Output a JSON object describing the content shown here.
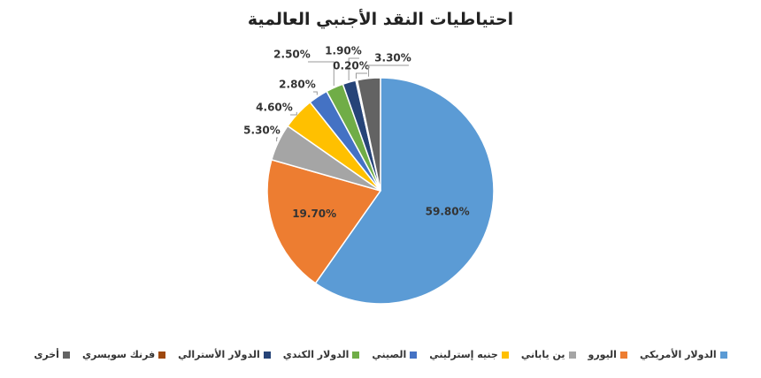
{
  "chart_data": {
    "type": "pie",
    "title": "احتياطيات النقد الأجنبي العالمية",
    "categories": [
      "الدولار الأمريكي",
      "اليورو",
      "ين ياباني",
      "جنيه إسترليني",
      "الصيني",
      "الدولار الكندي",
      "الدولار الأسترالي",
      "فرنك سويسري",
      "أخرى"
    ],
    "values": [
      59.8,
      19.7,
      5.3,
      4.6,
      2.8,
      2.5,
      1.9,
      0.2,
      3.3
    ],
    "value_labels": [
      "59.80%",
      "19.70%",
      "5.30%",
      "4.60%",
      "2.80%",
      "2.50%",
      "1.90%",
      "0.20%",
      "3.30%"
    ],
    "colors": [
      "#5b9bd5",
      "#ed7d31",
      "#a5a5a5",
      "#ffc000",
      "#4472c4",
      "#70ad47",
      "#264478",
      "#9e480e",
      "#636363"
    ]
  }
}
